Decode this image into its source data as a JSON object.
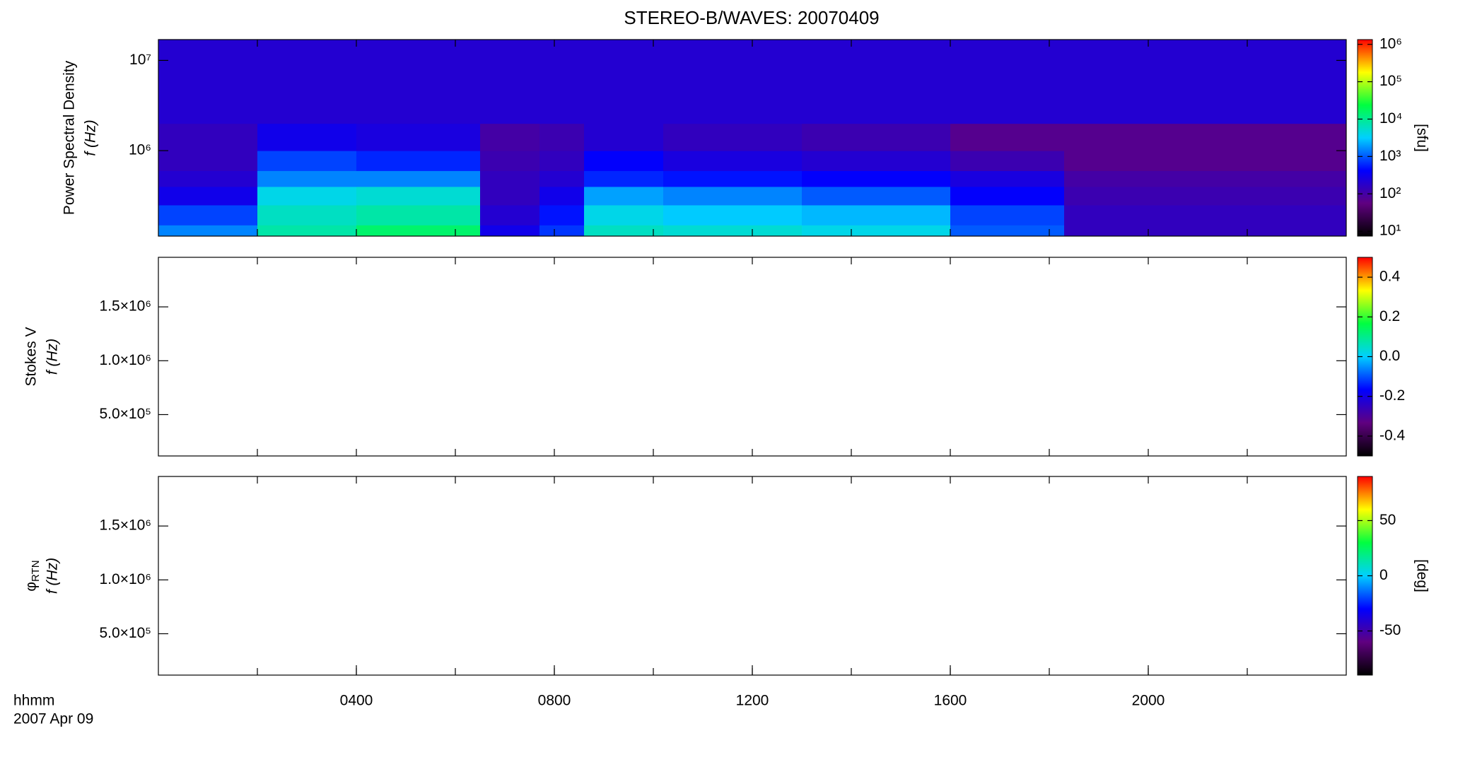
{
  "chart_data": [
    {
      "type": "spectrogram",
      "title": "STEREO-B/WAVES: 20070409",
      "ylabel": "Power Spectral Density",
      "ylabel2": "f (Hz)",
      "xlim": [
        0,
        24
      ],
      "xminorticks": [
        2,
        4,
        6,
        8,
        10,
        12,
        14,
        16,
        18,
        20,
        22
      ],
      "ylog": true,
      "ylim": [
        113000,
        17000000
      ],
      "yticks": [
        {
          "value": 1000000,
          "label": "10⁶"
        },
        {
          "value": 10000000,
          "label": "10⁷"
        }
      ],
      "xbins": [
        0,
        2,
        4,
        6.5,
        7.7,
        8.6,
        10.2,
        13,
        16,
        18.3,
        21,
        24
      ],
      "ybins": [
        113000,
        150000,
        250000,
        400000,
        600000,
        1000000,
        2000000,
        17000000
      ],
      "z": [
        [
          1500,
          8000,
          15000,
          300,
          700,
          6000,
          5000,
          4000,
          1000,
          150,
          150
        ],
        [
          800,
          6000,
          8000,
          200,
          500,
          4000,
          3000,
          2500,
          800,
          150,
          150
        ],
        [
          300,
          4000,
          5000,
          150,
          300,
          2000,
          1500,
          1000,
          400,
          120,
          120
        ],
        [
          200,
          1500,
          1500,
          150,
          200,
          600,
          500,
          400,
          250,
          100,
          100
        ],
        [
          150,
          800,
          600,
          120,
          150,
          400,
          250,
          200,
          120,
          70,
          70
        ],
        [
          150,
          300,
          250,
          100,
          120,
          200,
          150,
          120,
          70,
          70,
          70
        ],
        [
          200,
          200,
          200,
          200,
          200,
          200,
          200,
          200,
          200,
          200,
          200
        ]
      ],
      "colorbar": {
        "log": true,
        "lim": [
          7.4,
          1340000
        ],
        "label": "[sfu]",
        "colormap": [
          "#000000",
          "#600080",
          "#0000ff",
          "#00d0ff",
          "#00ff40",
          "#ffff00",
          "#ff0000"
        ],
        "ticks": [
          {
            "value": 10,
            "label": "10¹"
          },
          {
            "value": 100,
            "label": "10²"
          },
          {
            "value": 1000,
            "label": "10³"
          },
          {
            "value": 10000,
            "label": "10⁴"
          },
          {
            "value": 100000,
            "label": "10⁵"
          },
          {
            "value": 1000000,
            "label": "10⁶"
          }
        ]
      }
    },
    {
      "type": "spectrogram",
      "ylabel": "Stokes V",
      "ylabel2": "f (Hz)",
      "xlim": [
        0,
        24
      ],
      "xminorticks": [
        2,
        4,
        6,
        8,
        10,
        12,
        14,
        16,
        18,
        20,
        22
      ],
      "ylog": false,
      "ylim": [
        116000,
        1960000
      ],
      "yticks": [
        {
          "value": 500000,
          "label": "5.0×10⁵"
        },
        {
          "value": 1000000,
          "label": "1.0×10⁶"
        },
        {
          "value": 1500000,
          "label": "1.5×10⁶"
        }
      ],
      "colorbar": {
        "log": false,
        "lim": [
          -0.5,
          0.5
        ],
        "colormap": [
          "#000000",
          "#600080",
          "#0000ff",
          "#00d0ff",
          "#00ff40",
          "#ffff00",
          "#ff0000"
        ],
        "ticks": [
          -0.4,
          -0.2,
          {
            "value": 0,
            "label": "0.0"
          },
          0.2,
          0.4
        ]
      }
    },
    {
      "type": "spectrogram",
      "ylabel": "φ",
      "ylabel_sub": "RTN",
      "ylabel2": "f (Hz)",
      "xlim": [
        0,
        24
      ],
      "xminorticks": [
        2,
        4,
        6,
        8,
        10,
        12,
        14,
        16,
        18,
        20,
        22
      ],
      "xticks": [
        {
          "value": 4,
          "label": "0400"
        },
        {
          "value": 8,
          "label": "0800"
        },
        {
          "value": 12,
          "label": "1200"
        },
        {
          "value": 16,
          "label": "1600"
        },
        {
          "value": 20,
          "label": "2000"
        }
      ],
      "xlabel": "hhmm",
      "date": "2007 Apr 09",
      "ylog": false,
      "ylim": [
        116000,
        1960000
      ],
      "yticks": [
        {
          "value": 500000,
          "label": "5.0×10⁵"
        },
        {
          "value": 1000000,
          "label": "1.0×10⁶"
        },
        {
          "value": 1500000,
          "label": "1.5×10⁶"
        }
      ],
      "colorbar": {
        "log": false,
        "lim": [
          -90,
          90
        ],
        "label": "[deg]",
        "colormap": [
          "#000000",
          "#600080",
          "#0000ff",
          "#00d0ff",
          "#00ff40",
          "#ffff00",
          "#ff0000"
        ],
        "ticks": [
          -50,
          0,
          50
        ]
      }
    }
  ]
}
